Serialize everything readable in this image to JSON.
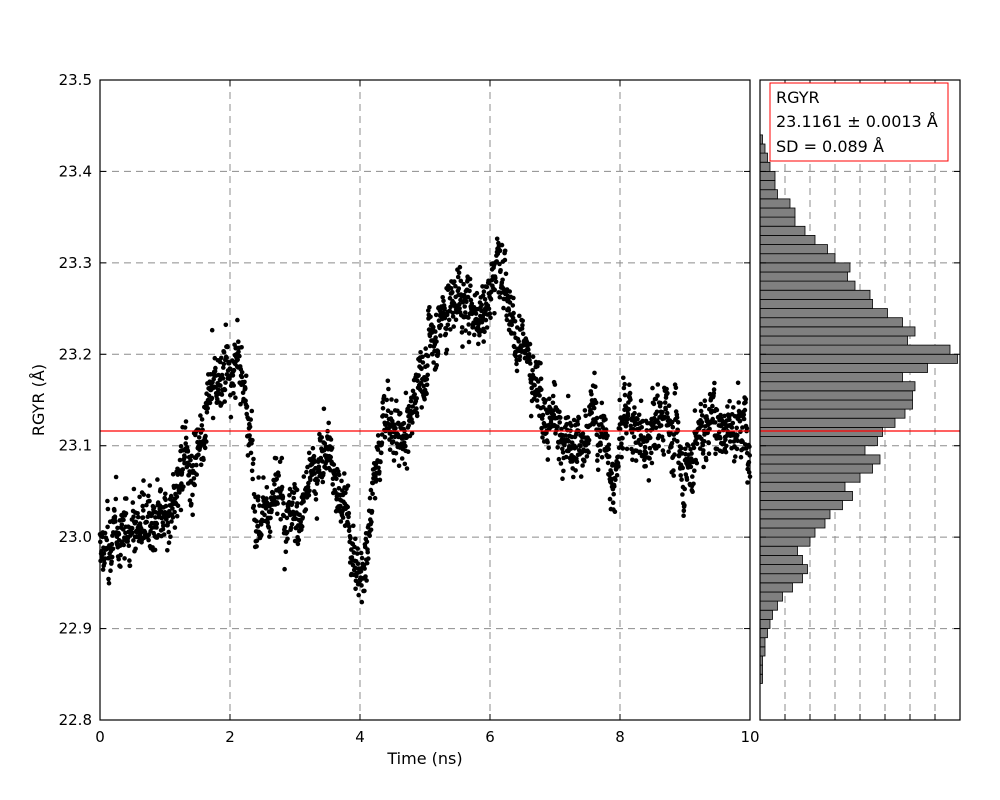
{
  "chart_data": {
    "type": "scatter",
    "title": "",
    "xlabel": "Time (ns)",
    "ylabel": "RGYR (Å)",
    "xlim": [
      0,
      10
    ],
    "ylim": [
      22.8,
      23.5
    ],
    "xticks": [
      "0",
      "2",
      "4",
      "6",
      "8",
      "10"
    ],
    "yticks": [
      "22.8",
      "22.9",
      "23.0",
      "23.1",
      "23.2",
      "23.3",
      "23.4",
      "23.5"
    ],
    "grid": true,
    "marker_color": "#000000",
    "mean_line": {
      "value": 23.1161,
      "color": "#ff0000"
    },
    "trajectory_keypoints": {
      "x": [
        0,
        0.3,
        0.6,
        1.0,
        1.2,
        1.5,
        1.8,
        2.0,
        2.2,
        2.4,
        2.7,
        3.0,
        3.3,
        3.5,
        3.8,
        4.0,
        4.2,
        4.4,
        4.7,
        5.0,
        5.3,
        5.6,
        5.8,
        6.0,
        6.2,
        6.4,
        6.7,
        7.0,
        7.3,
        7.6,
        7.9,
        8.1,
        8.4,
        8.7,
        9.0,
        9.3,
        9.6,
        10.0
      ],
      "y": [
        22.98,
        23.0,
        23.02,
        23.0,
        23.05,
        23.1,
        23.17,
        23.19,
        23.17,
        23.05,
        23.04,
        23.02,
        23.07,
        23.1,
        23.02,
        22.96,
        23.05,
        23.14,
        23.1,
        23.2,
        23.25,
        23.27,
        23.24,
        23.27,
        23.33,
        23.22,
        23.17,
        23.12,
        23.1,
        23.13,
        23.08,
        23.15,
        23.1,
        23.14,
        23.08,
        23.12,
        23.13,
        23.12
      ]
    },
    "histogram": {
      "type": "bar",
      "orientation": "horizontal",
      "bin_start": 22.8,
      "bin_width": 0.01,
      "bar_color": "#808080",
      "counts": [
        0,
        0,
        0,
        0,
        1,
        1,
        1,
        2,
        2,
        3,
        4,
        5,
        7,
        9,
        13,
        17,
        19,
        17,
        15,
        20,
        22,
        26,
        28,
        33,
        37,
        34,
        40,
        45,
        48,
        42,
        47,
        49,
        54,
        58,
        61,
        61,
        62,
        57,
        67,
        79,
        76,
        59,
        62,
        57,
        51,
        45,
        44,
        38,
        35,
        36,
        30,
        27,
        22,
        18,
        14,
        14,
        12,
        7,
        6,
        6,
        4,
        3,
        2,
        1,
        0,
        0,
        0,
        0,
        0,
        0
      ],
      "xlim": [
        0,
        80
      ]
    },
    "legend": {
      "placement": "top-right",
      "lines": [
        "RGYR",
        "23.1161 ± 0.0013 Å",
        "SD = 0.089 Å"
      ]
    }
  }
}
